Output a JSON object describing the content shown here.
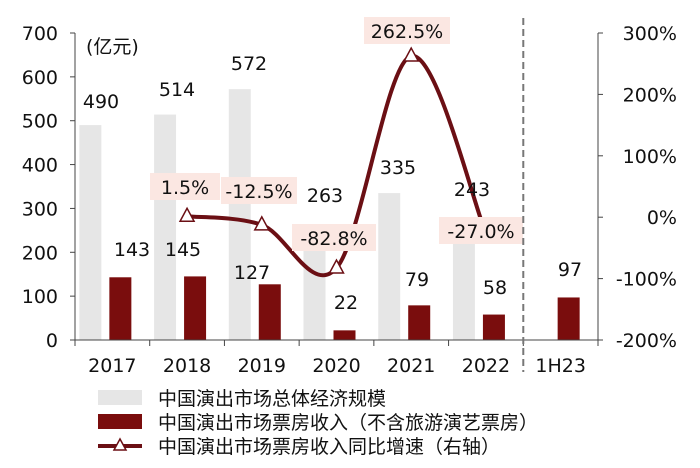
{
  "chart_data": {
    "type": "bar+line",
    "categories": [
      "2017",
      "2018",
      "2019",
      "2020",
      "2021",
      "2022",
      "1H23"
    ],
    "y_left_unit": "(亿元)",
    "y_left_ticks": [
      "0",
      "100",
      "200",
      "300",
      "400",
      "500",
      "600",
      "700"
    ],
    "y_left_lim": [
      0,
      700
    ],
    "y_right_ticks": [
      "-200%",
      "-100%",
      "0%",
      "100%",
      "200%",
      "300%"
    ],
    "y_right_lim": [
      -200,
      300
    ],
    "series": [
      {
        "name": "中国演出市场总体经济规模",
        "kind": "bar",
        "axis": "left",
        "color": "#e6e6e6",
        "values": [
          490,
          514,
          572,
          263,
          335,
          243,
          null
        ],
        "labels": [
          "490",
          "514",
          "572",
          "263",
          "335",
          "243",
          ""
        ]
      },
      {
        "name": "中国演出市场票房收入（不含旅游演艺票房）",
        "kind": "bar",
        "axis": "left",
        "color": "#7a0d0d",
        "values": [
          143,
          145,
          127,
          22,
          79,
          58,
          97
        ],
        "labels": [
          "143",
          "145",
          "127",
          "22",
          "79",
          "58",
          "97"
        ]
      },
      {
        "name": "中国演出市场票房收入同比增速（右轴）",
        "kind": "line",
        "axis": "right",
        "color": "#6b0f14",
        "values": [
          null,
          1.5,
          -12.5,
          -82.8,
          262.5,
          -27.0,
          null
        ],
        "labels": [
          "",
          "1.5%",
          "-12.5%",
          "-82.8%",
          "262.5%",
          "-27.0%",
          ""
        ]
      }
    ],
    "divider_before": "1H23"
  }
}
